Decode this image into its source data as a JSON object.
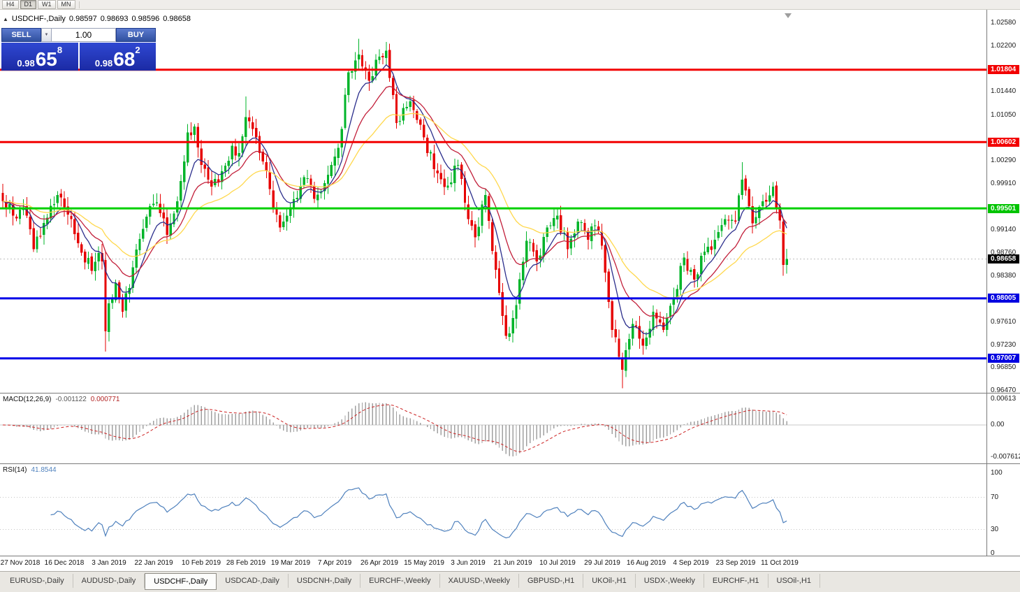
{
  "toolbar": {
    "periods": [
      {
        "label": "H4",
        "active": false
      },
      {
        "label": "D1",
        "active": true
      },
      {
        "label": "W1",
        "active": false
      },
      {
        "label": "MN",
        "active": false
      }
    ]
  },
  "icons": {
    "collapse": "▲",
    "volume_dropdown": "▼"
  },
  "chart_header": {
    "symbol_title": "USDCHF-,Daily",
    "open": "0.98597",
    "high": "0.98693",
    "low": "0.98596",
    "close": "0.98658"
  },
  "one_click": {
    "sell_label": "SELL",
    "buy_label": "BUY",
    "volume": "1.00",
    "sell_price": {
      "small": "0.98",
      "big": "65",
      "sup": "8"
    },
    "buy_price": {
      "small": "0.98",
      "big": "68",
      "sup": "2"
    }
  },
  "price_axis": {
    "labels": [
      "1.02580",
      "1.02200",
      "1.01440",
      "1.01050",
      "1.00290",
      "0.99910",
      "0.99140",
      "0.98760",
      "0.98380",
      "0.97610",
      "0.97230",
      "0.96850",
      "0.96470"
    ],
    "badges": [
      {
        "text": "1.01804",
        "price": 1.01804,
        "bg": "#f20000",
        "type": "line"
      },
      {
        "text": "1.00602",
        "price": 1.00602,
        "bg": "#f20000",
        "type": "line"
      },
      {
        "text": "0.99501",
        "price": 0.99501,
        "bg": "#00c400",
        "type": "line"
      },
      {
        "text": "0.98658",
        "price": 0.98658,
        "bg": "#000000",
        "type": "current"
      },
      {
        "text": "0.98005",
        "price": 0.98005,
        "bg": "#0000e0",
        "type": "line"
      },
      {
        "text": "0.97007",
        "price": 0.97007,
        "bg": "#0000e0",
        "type": "line"
      }
    ]
  },
  "macd": {
    "label": "MACD(12,26,9)",
    "value_main": "-0.001122",
    "value_signal": "0.000771",
    "params": {
      "fast": 12,
      "slow": 26,
      "signal": 9
    },
    "ticks": [
      {
        "text": "0.00613",
        "value": 0.00613
      },
      {
        "text": "0.00",
        "value": 0
      },
      {
        "text": "-0.007612",
        "value": -0.0076
      }
    ]
  },
  "rsi": {
    "label": "RSI(14)",
    "value": "41.8544",
    "period": 14,
    "levels": [
      70,
      30
    ],
    "ticks": [
      {
        "text": "100",
        "value": 100
      },
      {
        "text": "70",
        "value": 70
      },
      {
        "text": "30",
        "value": 30
      },
      {
        "text": "0",
        "value": 0
      }
    ]
  },
  "time_axis": {
    "labels": [
      "27 Nov 2018",
      "16 Dec 2018",
      "3 Jan 2019",
      "22 Jan 2019",
      "10 Feb 2019",
      "28 Feb 2019",
      "19 Mar 2019",
      "7 Apr 2019",
      "26 Apr 2019",
      "15 May 2019",
      "3 Jun 2019",
      "21 Jun 2019",
      "10 Jul 2019",
      "29 Jul 2019",
      "16 Aug 2019",
      "4 Sep 2019",
      "23 Sep 2019",
      "11 Oct 2019"
    ]
  },
  "tabs": [
    {
      "label": "EURUSD-,Daily",
      "active": false
    },
    {
      "label": "AUDUSD-,Daily",
      "active": false
    },
    {
      "label": "USDCHF-,Daily",
      "active": true
    },
    {
      "label": "USDCAD-,Daily",
      "active": false
    },
    {
      "label": "USDCNH-,Daily",
      "active": false
    },
    {
      "label": "EURCHF-,Weekly",
      "active": false
    },
    {
      "label": "XAUUSD-,Weekly",
      "active": false
    },
    {
      "label": "GBPUSD-,H1",
      "active": false
    },
    {
      "label": "UKOil-,H1",
      "active": false
    },
    {
      "label": "USDX-,Weekly",
      "active": false
    },
    {
      "label": "EURCHF-,H1",
      "active": false
    },
    {
      "label": "USOil-,H1",
      "active": false
    }
  ],
  "colors": {
    "macd_hist": "#a0a0a0",
    "macd_signal": "#cc2222",
    "rsi_line": "#4f81bd"
  },
  "chart_data": {
    "type": "candlestick",
    "symbol": "USDCHF-",
    "timeframe": "Daily",
    "count": 230,
    "y_range": [
      0.9647,
      1.0258
    ],
    "current_price": 0.98658,
    "up_color": "#00b42a",
    "down_color": "#e60000",
    "label_indices": [
      5,
      18,
      31,
      44,
      58,
      71,
      84,
      97,
      110,
      123,
      136,
      149,
      162,
      175,
      188,
      201,
      214,
      227
    ],
    "price_waypoints": [
      [
        0,
        0.9962
      ],
      [
        3,
        0.9938
      ],
      [
        6,
        0.9952
      ],
      [
        9,
        0.9882
      ],
      [
        12,
        0.9926
      ],
      [
        16,
        0.9972
      ],
      [
        18,
        0.9952
      ],
      [
        22,
        0.9892
      ],
      [
        26,
        0.9846
      ],
      [
        28,
        0.9876
      ],
      [
        29,
        0.9862
      ],
      [
        30,
        0.9746
      ],
      [
        31,
        0.9792
      ],
      [
        33,
        0.9826
      ],
      [
        35,
        0.9778
      ],
      [
        38,
        0.9852
      ],
      [
        41,
        0.9916
      ],
      [
        44,
        0.9958
      ],
      [
        46,
        0.9942
      ],
      [
        48,
        0.9906
      ],
      [
        51,
        0.9962
      ],
      [
        54,
        1.0076
      ],
      [
        56,
        1.0086
      ],
      [
        58,
        1.0022
      ],
      [
        61,
        0.9986
      ],
      [
        64,
        1.0012
      ],
      [
        67,
        1.0054
      ],
      [
        69,
        1.0042
      ],
      [
        71,
        1.0102
      ],
      [
        73,
        1.0082
      ],
      [
        75,
        1.0042
      ],
      [
        78,
        0.9982
      ],
      [
        81,
        0.9918
      ],
      [
        84,
        0.9952
      ],
      [
        88,
        1.0002
      ],
      [
        91,
        0.9966
      ],
      [
        94,
        0.9992
      ],
      [
        97,
        1.0036
      ],
      [
        99,
        1.0082
      ],
      [
        101,
        1.0176
      ],
      [
        104,
        1.0206
      ],
      [
        107,
        1.0162
      ],
      [
        110,
        1.0202
      ],
      [
        112,
        1.0212
      ],
      [
        115,
        1.0092
      ],
      [
        119,
        1.0128
      ],
      [
        123,
        1.0068
      ],
      [
        127,
        1.0008
      ],
      [
        130,
        0.9988
      ],
      [
        133,
        1.0022
      ],
      [
        136,
        0.9932
      ],
      [
        138,
        0.9902
      ],
      [
        141,
        0.9972
      ],
      [
        144,
        0.9848
      ],
      [
        147,
        0.9738
      ],
      [
        149,
        0.9768
      ],
      [
        151,
        0.9832
      ],
      [
        153,
        0.9896
      ],
      [
        156,
        0.9862
      ],
      [
        159,
        0.9918
      ],
      [
        162,
        0.9938
      ],
      [
        165,
        0.9882
      ],
      [
        168,
        0.9928
      ],
      [
        171,
        0.9898
      ],
      [
        173,
        0.9922
      ],
      [
        175,
        0.9888
      ],
      [
        178,
        0.9748
      ],
      [
        181,
        0.9682
      ],
      [
        184,
        0.9758
      ],
      [
        187,
        0.9722
      ],
      [
        190,
        0.9778
      ],
      [
        193,
        0.9748
      ],
      [
        196,
        0.9802
      ],
      [
        199,
        0.9868
      ],
      [
        202,
        0.9832
      ],
      [
        205,
        0.9878
      ],
      [
        208,
        0.9898
      ],
      [
        211,
        0.9932
      ],
      [
        214,
        0.9928
      ],
      [
        216,
        0.9998
      ],
      [
        219,
        0.9925
      ],
      [
        222,
        0.9962
      ],
      [
        225,
        0.9986
      ],
      [
        227,
        0.993
      ],
      [
        228,
        0.9856
      ],
      [
        229,
        0.9866
      ]
    ],
    "wick_overrides": [
      {
        "index": 30,
        "low": 0.9712
      },
      {
        "index": 71,
        "high": 1.0136
      },
      {
        "index": 104,
        "high": 1.0232
      },
      {
        "index": 112,
        "high": 1.0226
      },
      {
        "index": 181,
        "low": 0.9651
      },
      {
        "index": 216,
        "high": 1.0027
      },
      {
        "index": 228,
        "low": 0.9838
      }
    ],
    "horizontal_lines": [
      {
        "price": 1.01804,
        "color": "#f20000"
      },
      {
        "price": 1.00602,
        "color": "#f20000"
      },
      {
        "price": 0.99501,
        "color": "#00d000"
      },
      {
        "price": 0.98005,
        "color": "#0000e8"
      },
      {
        "price": 0.97007,
        "color": "#0000e8"
      }
    ],
    "moving_averages": [
      {
        "period": 8,
        "color": "#2b2e8c"
      },
      {
        "period": 17,
        "color": "#c21f3a"
      },
      {
        "period": 34,
        "color": "#ffd84d"
      }
    ]
  }
}
